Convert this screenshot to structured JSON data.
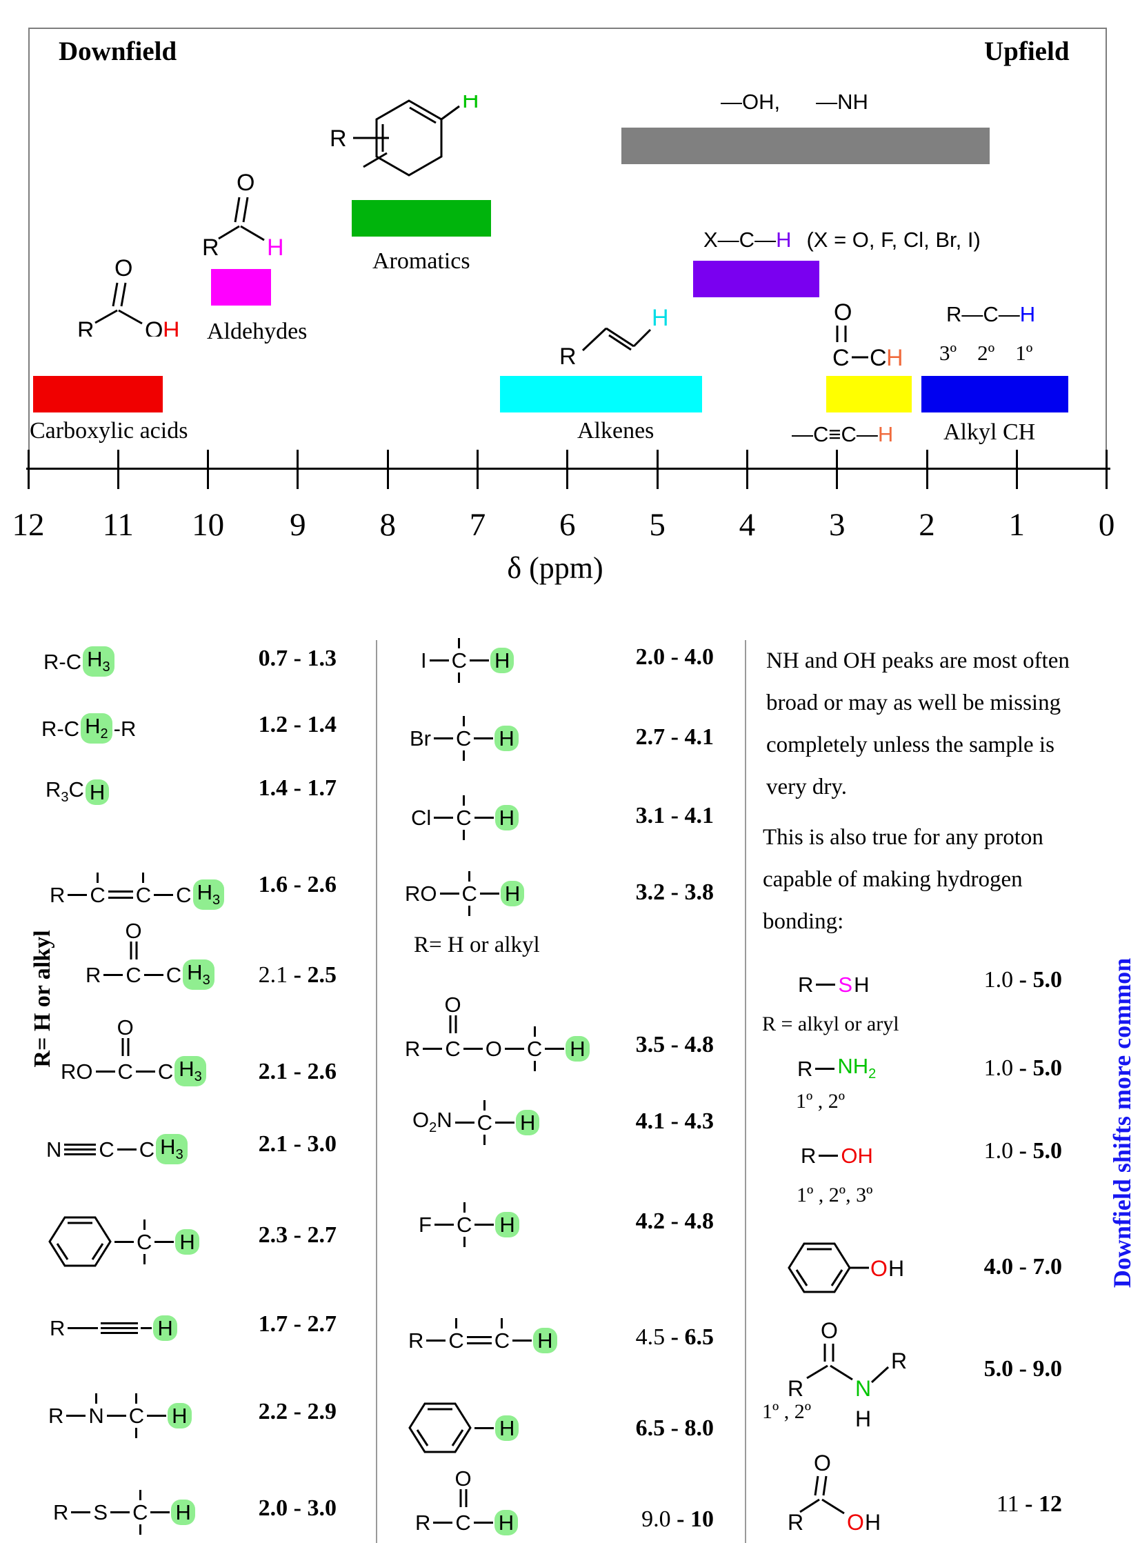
{
  "colors": {
    "red": "#f00000",
    "magenta": "#ff00ff",
    "green_bar": "#00b40c",
    "bright_green": "#00c400",
    "cyan": "#00ffff",
    "gray": "#808080",
    "purple": "#7a00f0",
    "yellow": "#ffff00",
    "blue_bar": "#0000f0",
    "blue_h": "#0000ff",
    "orange": "#f06a3c",
    "highlight": "#90ee90",
    "sidebar_blue": "#1616f0"
  },
  "ui": {
    "sep": " - "
  },
  "atoms": {
    "R": "R",
    "C": "C",
    "H": "H",
    "O": "O",
    "N": "N",
    "S": "S",
    "I": "I",
    "F": "F",
    "Cl": "Cl",
    "Br": "Br",
    "X": "X",
    "RO": "RO",
    "OH": "OH"
  },
  "subs": {
    "two": "2",
    "three": "3"
  },
  "chart": {
    "downfield": "Downfield",
    "upfield": "Upfield",
    "oh_label": "—OH,",
    "nh_label": "—NH",
    "xch_prefix": "X—C—",
    "xch_h": "H",
    "xch_note": "(X = O, F, Cl, Br, I)",
    "rch_prefix": "R—C—",
    "rch_h": "H",
    "deg3": "3º",
    "deg2": "2º",
    "deg1": "1º",
    "cech_prefix": "—C≡C—",
    "cech_h": "H",
    "labels": {
      "carboxylic": "Carboxylic acids",
      "aldehydes": "Aldehydes",
      "aromatics": "Aromatics",
      "alkenes": "Alkenes",
      "alkyl": "Alkyl CH"
    }
  },
  "chart_data": {
    "type": "ranges-on-axis",
    "title": "1H NMR chemical shift ranges",
    "axis": {
      "label": "δ (ppm)",
      "min": 0,
      "max": 12,
      "direction": "values decrease to the right",
      "ticks": [
        12,
        11,
        10,
        9,
        8,
        7,
        6,
        5,
        4,
        3,
        2,
        1,
        0
      ]
    },
    "regions": [
      {
        "label": "Carboxylic acids",
        "color": "#f00000",
        "from": 11.95,
        "to": 10.5
      },
      {
        "label": "Aldehydes",
        "color": "#ff00ff",
        "from": 9.97,
        "to": 9.3
      },
      {
        "label": "Aromatics",
        "color": "#00b40c",
        "from": 8.4,
        "to": 6.85
      },
      {
        "label": "Alkenes",
        "color": "#00ffff",
        "from": 6.75,
        "to": 4.5
      },
      {
        "label": "—OH, —NH",
        "color": "#808080",
        "from": 5.4,
        "to": 1.3
      },
      {
        "label": "X—C—H (X = O, F, Cl, Br, I)",
        "color": "#7a00f0",
        "from": 4.6,
        "to": 3.2
      },
      {
        "label": "C(=O)—CH and —C≡C—H",
        "color": "#ffff00",
        "from": 3.12,
        "to": 2.17
      },
      {
        "label": "Alkyl CH (3º 2º 1º)",
        "color": "#0000f0",
        "from": 2.06,
        "to": 0.43
      }
    ]
  },
  "col1": {
    "rotated_note": "R= H or alkyl",
    "rows": [
      {
        "name": "methyl",
        "t1": "R-C",
        "range": {
          "from": "0.7",
          "to": "1.3"
        }
      },
      {
        "name": "methylene",
        "t1": "R-C",
        "t2": "-R",
        "range": {
          "from": "1.2",
          "to": "1.4"
        }
      },
      {
        "name": "methine",
        "range": {
          "from": "1.4",
          "to": "1.7"
        }
      },
      {
        "name": "allylic-ch3",
        "range": {
          "from": "1.6",
          "to": "2.6"
        }
      },
      {
        "name": "ketone-ch3",
        "range": {
          "from": "2.1",
          "to": "2.5"
        }
      },
      {
        "name": "ester-ch3",
        "range": {
          "from": "2.1",
          "to": "2.6"
        }
      },
      {
        "name": "nitrile-ch3",
        "range": {
          "from": "2.1",
          "to": "3.0"
        }
      },
      {
        "name": "benzylic-ch",
        "range": {
          "from": "2.3",
          "to": "2.7"
        }
      },
      {
        "name": "alkyne-ch",
        "range": {
          "from": "1.7",
          "to": "2.7"
        }
      },
      {
        "name": "amine-alpha-ch",
        "range": {
          "from": "2.2",
          "to": "2.9"
        }
      },
      {
        "name": "thioether-ch",
        "range": {
          "from": "2.0",
          "to": "3.0"
        }
      }
    ]
  },
  "col2": {
    "note": "R= H or alkyl",
    "rows": [
      {
        "name": "iodo-ch",
        "range": {
          "from": "2.0",
          "to": "4.0"
        }
      },
      {
        "name": "bromo-ch",
        "range": {
          "from": "2.7",
          "to": "4.1"
        }
      },
      {
        "name": "chloro-ch",
        "range": {
          "from": "3.1",
          "to": "4.1"
        }
      },
      {
        "name": "ether-ch",
        "range": {
          "from": "3.2",
          "to": "3.8"
        }
      },
      {
        "name": "ester-och",
        "range": {
          "from": "3.5",
          "to": "4.8"
        }
      },
      {
        "name": "nitro-ch",
        "range": {
          "from": "4.1",
          "to": "4.3"
        }
      },
      {
        "name": "fluoro-ch",
        "range": {
          "from": "4.2",
          "to": "4.8"
        }
      },
      {
        "name": "vinyl-h",
        "range": {
          "from": "4.5",
          "to": "6.5"
        }
      },
      {
        "name": "aryl-h",
        "range": {
          "from": "6.5",
          "to": "8.0"
        }
      },
      {
        "name": "aldehyde-h",
        "range": {
          "from": "9.0",
          "to": "10"
        }
      }
    ]
  },
  "col3": {
    "para1_lines": [
      "NH and OH peaks are most often",
      "broad or may as well be missing",
      "completely unless the sample is",
      "very dry."
    ],
    "para2_lines": [
      "This is also true for any proton",
      "capable of making hydrogen",
      "bonding:"
    ],
    "sh": {
      "note": "R = alkyl or aryl",
      "range": {
        "from": "1.0",
        "to": "5.0"
      }
    },
    "nh2": {
      "note": "1º , 2º",
      "range": {
        "from": "1.0",
        "to": "5.0"
      }
    },
    "oh": {
      "note": "1º , 2º, 3º",
      "range": {
        "from": "1.0",
        "to": "5.0"
      }
    },
    "phenol": {
      "range": {
        "from": "4.0",
        "to": "7.0"
      }
    },
    "amide": {
      "note": "1º , 2º",
      "range": {
        "from": "5.0",
        "to": "9.0"
      }
    },
    "acid": {
      "range": {
        "from": "11",
        "to": "12"
      }
    },
    "sidebar": "Downfield shifts more common"
  }
}
